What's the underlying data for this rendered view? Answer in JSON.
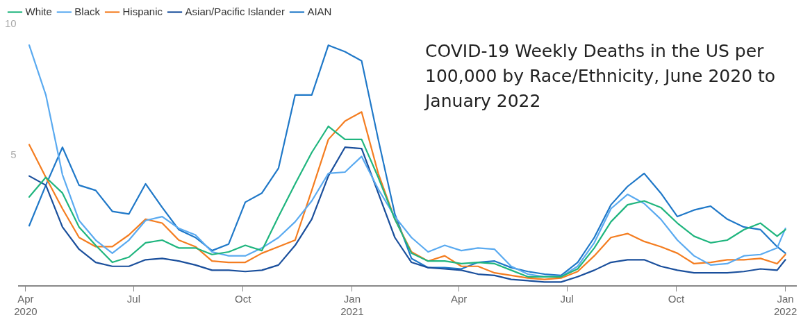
{
  "chart_data": {
    "type": "line",
    "title": "COVID-19 Weekly Deaths in the US per 100,000 by Race/Ethnicity, June 2020 to January 2022",
    "x": [
      "2020-04-04",
      "2020-04-18",
      "2020-05-02",
      "2020-05-16",
      "2020-05-30",
      "2020-06-13",
      "2020-06-27",
      "2020-07-11",
      "2020-07-25",
      "2020-08-08",
      "2020-08-22",
      "2020-09-05",
      "2020-09-19",
      "2020-10-03",
      "2020-10-17",
      "2020-10-31",
      "2020-11-14",
      "2020-11-28",
      "2020-12-12",
      "2020-12-26",
      "2021-01-09",
      "2021-01-23",
      "2021-02-06",
      "2021-02-20",
      "2021-03-06",
      "2021-03-20",
      "2021-04-03",
      "2021-04-17",
      "2021-05-01",
      "2021-05-15",
      "2021-05-29",
      "2021-06-12",
      "2021-06-26",
      "2021-07-10",
      "2021-07-24",
      "2021-08-07",
      "2021-08-21",
      "2021-09-04",
      "2021-09-18",
      "2021-10-02",
      "2021-10-16",
      "2021-10-30",
      "2021-11-13",
      "2021-11-27",
      "2021-12-11",
      "2021-12-25",
      "2022-01-01"
    ],
    "series": [
      {
        "name": "White",
        "color": "#1fb57e",
        "values": [
          3.4,
          4.15,
          3.55,
          2.25,
          1.55,
          0.9,
          1.1,
          1.65,
          1.75,
          1.45,
          1.45,
          1.2,
          1.3,
          1.55,
          1.35,
          2.65,
          3.9,
          5.1,
          6.1,
          5.6,
          5.6,
          4.15,
          2.55,
          1.25,
          0.95,
          0.95,
          0.85,
          0.9,
          0.85,
          0.6,
          0.35,
          0.35,
          0.35,
          0.65,
          1.45,
          2.45,
          3.1,
          3.25,
          3.0,
          2.4,
          1.9,
          1.65,
          1.75,
          2.15,
          2.4,
          1.9,
          2.15
        ]
      },
      {
        "name": "Black",
        "color": "#5aaaf0",
        "values": [
          9.2,
          7.3,
          4.25,
          2.5,
          1.75,
          1.25,
          1.75,
          2.5,
          2.65,
          2.2,
          1.95,
          1.3,
          1.15,
          1.15,
          1.45,
          1.85,
          2.45,
          3.25,
          4.3,
          4.35,
          4.95,
          3.7,
          2.65,
          1.85,
          1.3,
          1.55,
          1.35,
          1.45,
          1.4,
          0.75,
          0.45,
          0.35,
          0.35,
          0.75,
          1.65,
          2.95,
          3.5,
          3.15,
          2.55,
          1.75,
          1.15,
          0.8,
          0.85,
          1.15,
          1.2,
          1.45,
          2.2
        ]
      },
      {
        "name": "Hispanic",
        "color": "#f47d20",
        "values": [
          5.4,
          4.15,
          2.95,
          1.85,
          1.5,
          1.5,
          1.95,
          2.55,
          2.4,
          1.75,
          1.5,
          0.95,
          0.9,
          0.9,
          1.25,
          1.5,
          1.75,
          3.65,
          5.6,
          6.3,
          6.65,
          4.3,
          2.55,
          1.3,
          0.95,
          1.15,
          0.75,
          0.75,
          0.5,
          0.4,
          0.3,
          0.25,
          0.3,
          0.55,
          1.15,
          1.85,
          2.0,
          1.7,
          1.5,
          1.25,
          0.85,
          0.9,
          1.0,
          1.0,
          1.05,
          0.85,
          1.2
        ]
      },
      {
        "name": "Asian/Pacific Islander",
        "color": "#1a4f9c",
        "values": [
          4.2,
          3.85,
          2.25,
          1.4,
          0.9,
          0.75,
          0.75,
          1.0,
          1.05,
          0.95,
          0.8,
          0.6,
          0.6,
          0.55,
          0.6,
          0.8,
          1.55,
          2.55,
          4.2,
          5.3,
          5.25,
          3.55,
          1.85,
          0.9,
          0.7,
          0.65,
          0.6,
          0.45,
          0.4,
          0.25,
          0.2,
          0.15,
          0.15,
          0.35,
          0.6,
          0.9,
          1.0,
          1.0,
          0.75,
          0.6,
          0.5,
          0.5,
          0.5,
          0.55,
          0.65,
          0.6,
          1.0
        ]
      },
      {
        "name": "AIAN",
        "color": "#1f78c8",
        "values": [
          2.3,
          3.85,
          5.3,
          3.85,
          3.65,
          2.85,
          2.75,
          3.9,
          3.0,
          2.15,
          1.85,
          1.35,
          1.6,
          3.2,
          3.55,
          4.5,
          7.3,
          7.3,
          9.2,
          8.95,
          8.6,
          5.6,
          2.75,
          1.05,
          0.7,
          0.7,
          0.65,
          0.9,
          0.95,
          0.7,
          0.55,
          0.45,
          0.4,
          0.9,
          1.85,
          3.1,
          3.8,
          4.3,
          3.55,
          2.65,
          2.9,
          3.05,
          2.55,
          2.25,
          2.15,
          1.5,
          1.25
        ]
      }
    ],
    "xlim": [
      "2020-03-26",
      "2022-01-10"
    ],
    "xticks": [
      {
        "value": "2020-04-01",
        "label": "Apr 2020"
      },
      {
        "value": "2020-07-01",
        "label": "Jul"
      },
      {
        "value": "2020-10-01",
        "label": "Oct"
      },
      {
        "value": "2021-01-01",
        "label": "Jan 2021"
      },
      {
        "value": "2021-04-01",
        "label": "Apr"
      },
      {
        "value": "2021-07-01",
        "label": "Jul"
      },
      {
        "value": "2021-10-01",
        "label": "Oct"
      },
      {
        "value": "2022-01-01",
        "label": "Jan 2022"
      }
    ],
    "ylim": [
      0,
      10
    ],
    "yticks": [
      5,
      10
    ],
    "grid": false,
    "legend": "top left",
    "marker": "none",
    "line_style": "solid"
  }
}
